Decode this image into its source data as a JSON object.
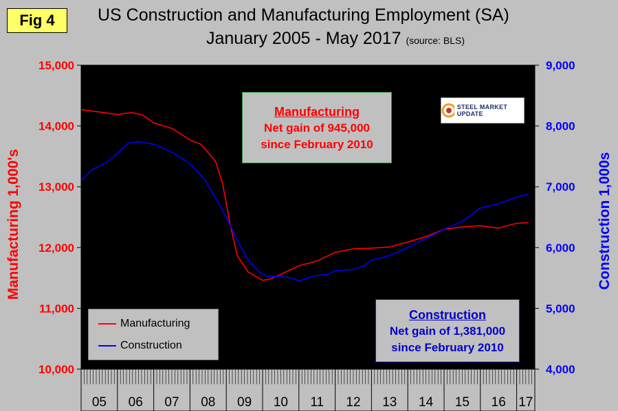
{
  "fig_label": "Fig 4",
  "title_line1": "US Construction and Manufacturing Employment (SA)",
  "title_line2": "January 2005 - May 2017",
  "title_source": "(source: BLS)",
  "logo": {
    "text": "STEEL MARKET UPDATE"
  },
  "annotations": {
    "manufacturing": {
      "heading": "Manufacturing",
      "line1": "Net gain of 945,000",
      "line2": "since February 2010"
    },
    "construction": {
      "heading": "Construction",
      "line1": "Net gain of 1,381,000",
      "line2": "since February 2010"
    }
  },
  "colors": {
    "manufacturing": "#ff0000",
    "construction": "#0000ff",
    "plot_bg": "#000000"
  },
  "chart_data": {
    "type": "line",
    "title": "US Construction and Manufacturing Employment (SA) January 2005 - May 2017",
    "ylabel_left": "Manufacturing 1,000's",
    "ylabel_right": "Construction 1,000s",
    "ylim_left": [
      10000,
      15000
    ],
    "ylim_right": [
      4000,
      9000
    ],
    "yticks_left": [
      "10,000",
      "11,000",
      "12,000",
      "13,000",
      "14,000",
      "15,000"
    ],
    "yticks_right": [
      "4,000",
      "5,000",
      "6,000",
      "7,000",
      "8,000",
      "9,000"
    ],
    "x_categories": [
      "05",
      "06",
      "07",
      "08",
      "09",
      "10",
      "11",
      "12",
      "13",
      "14",
      "15",
      "16",
      "17"
    ],
    "legend": [
      "Manufacturing",
      "Construction"
    ],
    "series": [
      {
        "name": "Manufacturing",
        "axis": "left",
        "points": [
          [
            2005.0,
            14270
          ],
          [
            2005.5,
            14230
          ],
          [
            2006.0,
            14190
          ],
          [
            2006.4,
            14220
          ],
          [
            2006.7,
            14180
          ],
          [
            2007.0,
            14050
          ],
          [
            2007.5,
            13960
          ],
          [
            2008.0,
            13770
          ],
          [
            2008.3,
            13700
          ],
          [
            2008.7,
            13420
          ],
          [
            2008.9,
            13050
          ],
          [
            2009.1,
            12400
          ],
          [
            2009.3,
            11870
          ],
          [
            2009.6,
            11600
          ],
          [
            2010.0,
            11460
          ],
          [
            2010.2,
            11480
          ],
          [
            2010.5,
            11560
          ],
          [
            2011.0,
            11700
          ],
          [
            2011.5,
            11780
          ],
          [
            2012.0,
            11920
          ],
          [
            2012.5,
            11980
          ],
          [
            2013.0,
            11990
          ],
          [
            2013.5,
            12010
          ],
          [
            2014.0,
            12090
          ],
          [
            2014.5,
            12180
          ],
          [
            2015.0,
            12300
          ],
          [
            2015.5,
            12340
          ],
          [
            2016.0,
            12360
          ],
          [
            2016.5,
            12320
          ],
          [
            2017.0,
            12400
          ],
          [
            2017.33,
            12410
          ]
        ]
      },
      {
        "name": "Construction",
        "axis": "right",
        "points": [
          [
            2005.0,
            7100
          ],
          [
            2005.3,
            7280
          ],
          [
            2005.7,
            7400
          ],
          [
            2006.0,
            7550
          ],
          [
            2006.3,
            7720
          ],
          [
            2006.6,
            7740
          ],
          [
            2007.0,
            7700
          ],
          [
            2007.5,
            7570
          ],
          [
            2008.0,
            7380
          ],
          [
            2008.4,
            7120
          ],
          [
            2008.8,
            6720
          ],
          [
            2009.0,
            6500
          ],
          [
            2009.3,
            6120
          ],
          [
            2009.6,
            5800
          ],
          [
            2009.9,
            5600
          ],
          [
            2010.1,
            5530
          ],
          [
            2010.5,
            5520
          ],
          [
            2010.8,
            5500
          ],
          [
            2011.0,
            5450
          ],
          [
            2011.4,
            5530
          ],
          [
            2011.8,
            5560
          ],
          [
            2012.0,
            5620
          ],
          [
            2012.5,
            5640
          ],
          [
            2012.8,
            5700
          ],
          [
            2013.0,
            5790
          ],
          [
            2013.5,
            5870
          ],
          [
            2014.0,
            6000
          ],
          [
            2014.5,
            6150
          ],
          [
            2015.0,
            6300
          ],
          [
            2015.5,
            6430
          ],
          [
            2016.0,
            6650
          ],
          [
            2016.5,
            6720
          ],
          [
            2017.0,
            6830
          ],
          [
            2017.33,
            6880
          ]
        ]
      }
    ]
  }
}
